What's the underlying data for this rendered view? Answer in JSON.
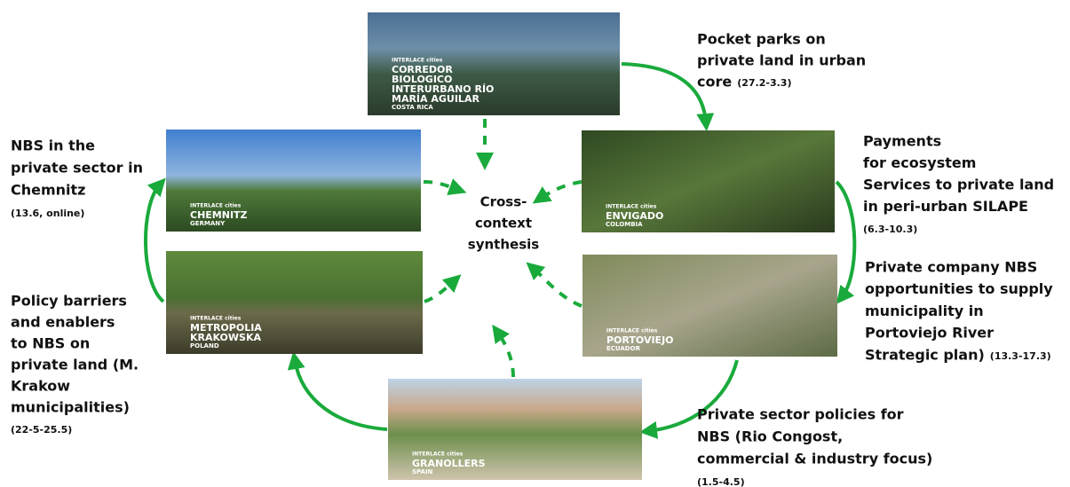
{
  "center": [
    "Cross-",
    "context",
    "synthesis"
  ],
  "cities": [
    {
      "tag": "INTERLACE cities",
      "name": [
        "CORREDOR",
        "BIOLOGICO",
        "INTERURBANO RÍO",
        "MARÍA AGUILAR"
      ],
      "country": "COSTA RICA"
    },
    {
      "tag": "INTERLACE cities",
      "name": [
        "CHEMNITZ"
      ],
      "country": "GERMANY"
    },
    {
      "tag": "INTERLACE cities",
      "name": [
        "ENVIGADO"
      ],
      "country": "COLOMBIA"
    },
    {
      "tag": "INTERLACE cities",
      "name": [
        "METROPOLIA",
        "KRAKOWSKA"
      ],
      "country": "POLAND"
    },
    {
      "tag": "INTERLACE cities",
      "name": [
        "PORTOVIEJO"
      ],
      "country": "ECUADOR"
    },
    {
      "tag": "INTERLACE cities",
      "name": [
        "GRANOLLERS"
      ],
      "country": "SPAIN"
    }
  ],
  "captions": [
    {
      "lines": [
        "Pocket parks on",
        "private land in urban",
        "core"
      ],
      "note": "(27.2-3.3)"
    },
    {
      "lines": [
        "NBS in the",
        "private sector in",
        "Chemnitz"
      ],
      "note": "(13.6, online)"
    },
    {
      "lines": [
        "Payments",
        "for ecosystem",
        "Services to private land",
        "in peri-urban SILAPE"
      ],
      "note": "(6.3-10.3)"
    },
    {
      "lines": [
        "Private company NBS",
        "opportunities to supply",
        "municipality in",
        "Portoviejo River",
        "Strategic plan)"
      ],
      "note": "(13.3-17.3)"
    },
    {
      "lines": [
        "Policy barriers",
        "and enablers",
        "to NBS on",
        "private land (M.",
        "Krakow",
        "municipalities)"
      ],
      "note": "(22-5-25.5)"
    },
    {
      "lines": [
        "Private sector policies for",
        "NBS (Rio Congost,",
        "commercial & industry focus)"
      ],
      "note": "(1.5-4.5)"
    }
  ]
}
